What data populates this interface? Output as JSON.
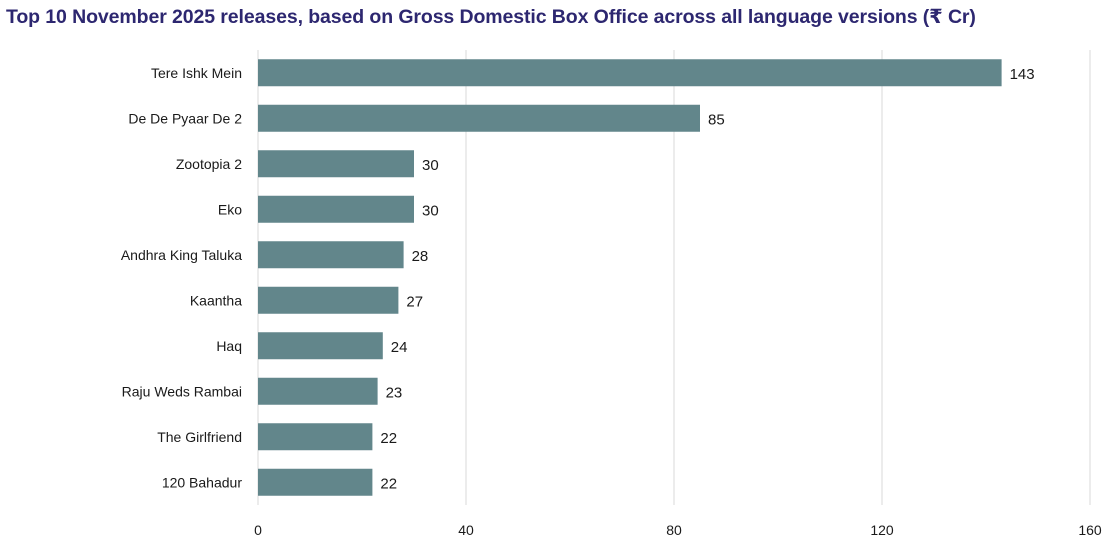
{
  "chart_data": {
    "type": "bar",
    "orientation": "horizontal",
    "title": "Top 10 November 2025 releases, based on Gross Domestic Box Office across all language versions (₹ Cr)",
    "categories": [
      "Tere Ishk Mein",
      "De De Pyaar De 2",
      "Zootopia 2",
      "Eko",
      "Andhra King Taluka",
      "Kaantha",
      "Haq",
      "Raju Weds Rambai",
      "The Girlfriend",
      "120 Bahadur"
    ],
    "values": [
      143,
      85,
      30,
      30,
      28,
      27,
      24,
      23,
      22,
      22
    ],
    "value_labels": [
      "143",
      "85",
      "30",
      "30",
      "28",
      "27",
      "24",
      "23",
      "22",
      "22"
    ],
    "xlim": [
      0,
      160
    ],
    "xticks": [
      0,
      40,
      80,
      120,
      160
    ],
    "grid": true,
    "bar_color": "#62868b",
    "grid_color": "#d9d9d9",
    "title_color": "#2d2770",
    "xlabel": "",
    "ylabel": ""
  }
}
